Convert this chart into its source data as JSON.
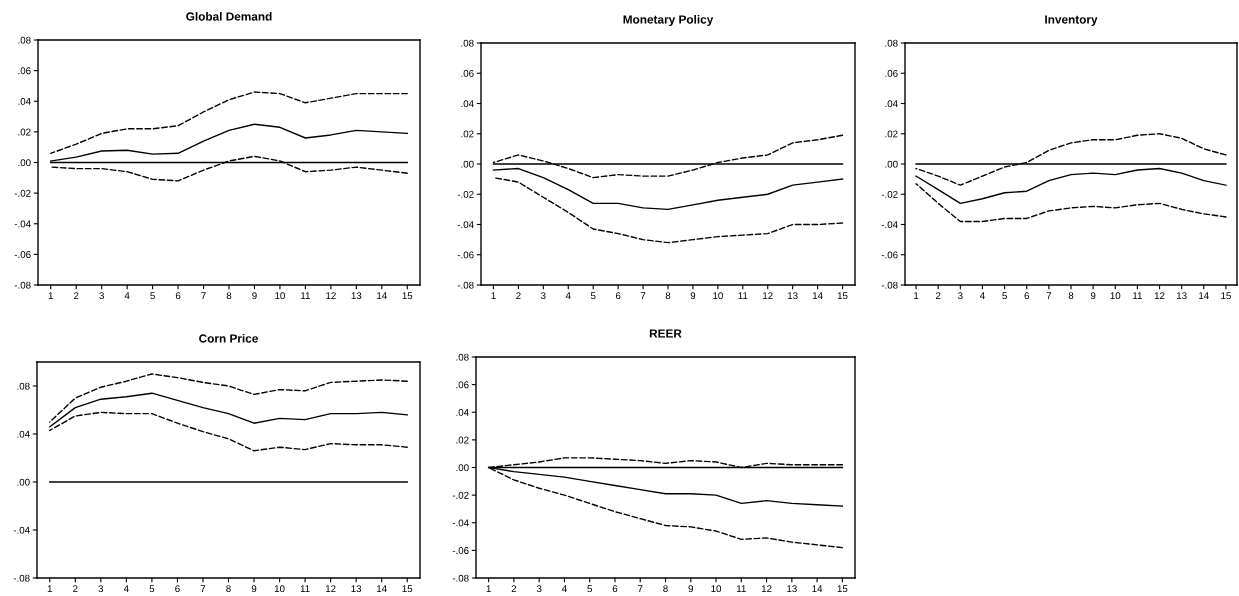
{
  "chart_data": [
    {
      "type": "line",
      "title": "Global Demand",
      "categories": [
        "1",
        "2",
        "3",
        "4",
        "5",
        "6",
        "7",
        "8",
        "9",
        "10",
        "11",
        "12",
        "13",
        "14",
        "15"
      ],
      "ylim": [
        -0.08,
        0.08
      ],
      "yticks": [
        {
          "value": -0.08,
          "label": "-.08"
        },
        {
          "value": -0.06,
          "label": "-.06"
        },
        {
          "value": -0.04,
          "label": "-.04"
        },
        {
          "value": -0.02,
          "label": "-.02"
        },
        {
          "value": 0,
          "label": ".00"
        },
        {
          "value": 0.02,
          "label": ".02"
        },
        {
          "value": 0.04,
          "label": ".04"
        },
        {
          "value": 0.06,
          "label": ".06"
        },
        {
          "value": 0.08,
          "label": ".08"
        }
      ],
      "grid": false,
      "legend": false,
      "ref_lines": [
        {
          "axis": "y",
          "value": 0,
          "color": "#000000"
        }
      ],
      "series": [
        {
          "color": "#000000",
          "line_style": "solid",
          "values": [
            0.001,
            0.0035,
            0.0075,
            0.008,
            0.0055,
            0.006,
            0.014,
            0.021,
            0.025,
            0.023,
            0.016,
            0.018,
            0.021,
            0.02,
            0.019
          ]
        },
        {
          "color": "#000000",
          "line_style": "dashed",
          "values": [
            0.006,
            0.012,
            0.019,
            0.022,
            0.022,
            0.024,
            0.033,
            0.041,
            0.046,
            0.045,
            0.039,
            0.042,
            0.045,
            0.045,
            0.045
          ]
        },
        {
          "color": "#000000",
          "line_style": "dashed",
          "values": [
            -0.003,
            -0.004,
            -0.004,
            -0.006,
            -0.011,
            -0.012,
            -0.005,
            0.001,
            0.004,
            0.001,
            -0.006,
            -0.005,
            -0.003,
            -0.005,
            -0.007
          ]
        }
      ]
    },
    {
      "type": "line",
      "title": "Monetary Policy",
      "categories": [
        "1",
        "2",
        "3",
        "4",
        "5",
        "6",
        "7",
        "8",
        "9",
        "10",
        "11",
        "12",
        "13",
        "14",
        "15"
      ],
      "ylim": [
        -0.08,
        0.08
      ],
      "yticks": [
        {
          "value": -0.08,
          "label": "-.08"
        },
        {
          "value": -0.06,
          "label": "-.06"
        },
        {
          "value": -0.04,
          "label": "-.04"
        },
        {
          "value": -0.02,
          "label": "-.02"
        },
        {
          "value": 0,
          "label": ".00"
        },
        {
          "value": 0.02,
          "label": ".02"
        },
        {
          "value": 0.04,
          "label": ".04"
        },
        {
          "value": 0.06,
          "label": ".06"
        },
        {
          "value": 0.08,
          "label": ".08"
        }
      ],
      "grid": false,
      "legend": false,
      "ref_lines": [
        {
          "axis": "y",
          "value": 0,
          "color": "#000000"
        }
      ],
      "series": [
        {
          "color": "#000000",
          "line_style": "solid",
          "values": [
            -0.004,
            -0.003,
            -0.009,
            -0.017,
            -0.026,
            -0.026,
            -0.029,
            -0.03,
            -0.027,
            -0.024,
            -0.022,
            -0.02,
            -0.014,
            -0.012,
            -0.01
          ]
        },
        {
          "color": "#000000",
          "line_style": "dashed",
          "values": [
            0.001,
            0.006,
            0.002,
            -0.003,
            -0.009,
            -0.007,
            -0.008,
            -0.008,
            -0.004,
            0.001,
            0.004,
            0.006,
            0.014,
            0.016,
            0.019
          ]
        },
        {
          "color": "#000000",
          "line_style": "dashed",
          "values": [
            -0.009,
            -0.012,
            -0.022,
            -0.032,
            -0.043,
            -0.046,
            -0.05,
            -0.052,
            -0.05,
            -0.048,
            -0.047,
            -0.046,
            -0.04,
            -0.04,
            -0.039
          ]
        }
      ]
    },
    {
      "type": "line",
      "title": "Inventory",
      "categories": [
        "1",
        "2",
        "3",
        "4",
        "5",
        "6",
        "7",
        "8",
        "9",
        "10",
        "11",
        "12",
        "13",
        "14",
        "15"
      ],
      "ylim": [
        -0.08,
        0.08
      ],
      "yticks": [
        {
          "value": -0.08,
          "label": "-.08"
        },
        {
          "value": -0.06,
          "label": "-.06"
        },
        {
          "value": -0.04,
          "label": "-.04"
        },
        {
          "value": -0.02,
          "label": "-.02"
        },
        {
          "value": 0,
          "label": ".00"
        },
        {
          "value": 0.02,
          "label": ".02"
        },
        {
          "value": 0.04,
          "label": ".04"
        },
        {
          "value": 0.06,
          "label": ".06"
        },
        {
          "value": 0.08,
          "label": ".08"
        }
      ],
      "grid": false,
      "legend": false,
      "ref_lines": [
        {
          "axis": "y",
          "value": 0,
          "color": "#000000"
        }
      ],
      "series": [
        {
          "color": "#000000",
          "line_style": "solid",
          "values": [
            -0.008,
            -0.017,
            -0.026,
            -0.023,
            -0.019,
            -0.018,
            -0.011,
            -0.007,
            -0.006,
            -0.007,
            -0.004,
            -0.003,
            -0.006,
            -0.011,
            -0.014
          ]
        },
        {
          "color": "#000000",
          "line_style": "dashed",
          "values": [
            -0.003,
            -0.008,
            -0.014,
            -0.008,
            -0.002,
            0.001,
            0.009,
            0.014,
            0.016,
            0.016,
            0.019,
            0.02,
            0.017,
            0.01,
            0.006
          ]
        },
        {
          "color": "#000000",
          "line_style": "dashed",
          "values": [
            -0.013,
            -0.026,
            -0.038,
            -0.038,
            -0.036,
            -0.036,
            -0.031,
            -0.029,
            -0.028,
            -0.029,
            -0.027,
            -0.026,
            -0.03,
            -0.033,
            -0.035
          ]
        }
      ]
    },
    {
      "type": "line",
      "title": "Corn Price",
      "categories": [
        "1",
        "2",
        "3",
        "4",
        "5",
        "6",
        "7",
        "8",
        "9",
        "10",
        "11",
        "12",
        "13",
        "14",
        "15"
      ],
      "ylim": [
        -0.08,
        0.1
      ],
      "yticks": [
        {
          "value": -0.08,
          "label": "-.08"
        },
        {
          "value": -0.04,
          "label": "-.04"
        },
        {
          "value": 0,
          "label": ".00"
        },
        {
          "value": 0.04,
          "label": ".04"
        },
        {
          "value": 0.08,
          "label": ".08"
        }
      ],
      "grid": false,
      "legend": false,
      "ref_lines": [
        {
          "axis": "y",
          "value": 0,
          "color": "#000000"
        }
      ],
      "series": [
        {
          "color": "#000000",
          "line_style": "solid",
          "values": [
            0.046,
            0.062,
            0.069,
            0.071,
            0.074,
            0.068,
            0.062,
            0.057,
            0.049,
            0.053,
            0.052,
            0.057,
            0.057,
            0.058,
            0.056
          ]
        },
        {
          "color": "#000000",
          "line_style": "dashed",
          "values": [
            0.05,
            0.07,
            0.079,
            0.084,
            0.09,
            0.087,
            0.083,
            0.08,
            0.073,
            0.077,
            0.076,
            0.083,
            0.084,
            0.085,
            0.084
          ]
        },
        {
          "color": "#000000",
          "line_style": "dashed",
          "values": [
            0.043,
            0.055,
            0.058,
            0.057,
            0.057,
            0.049,
            0.042,
            0.036,
            0.026,
            0.029,
            0.027,
            0.032,
            0.031,
            0.031,
            0.029
          ]
        }
      ]
    },
    {
      "type": "line",
      "title": "REER",
      "categories": [
        "1",
        "2",
        "3",
        "4",
        "5",
        "6",
        "7",
        "8",
        "9",
        "10",
        "11",
        "12",
        "13",
        "14",
        "15"
      ],
      "ylim": [
        -0.08,
        0.08
      ],
      "yticks": [
        {
          "value": -0.08,
          "label": "-.08"
        },
        {
          "value": -0.06,
          "label": "-.06"
        },
        {
          "value": -0.04,
          "label": "-.04"
        },
        {
          "value": -0.02,
          "label": "-.02"
        },
        {
          "value": 0,
          "label": ".00"
        },
        {
          "value": 0.02,
          "label": ".02"
        },
        {
          "value": 0.04,
          "label": ".04"
        },
        {
          "value": 0.06,
          "label": ".06"
        },
        {
          "value": 0.08,
          "label": ".08"
        }
      ],
      "grid": false,
      "legend": false,
      "ref_lines": [
        {
          "axis": "y",
          "value": 0,
          "color": "#000000"
        }
      ],
      "series": [
        {
          "color": "#000000",
          "line_style": "solid",
          "values": [
            0,
            -0.003,
            -0.005,
            -0.007,
            -0.01,
            -0.013,
            -0.016,
            -0.019,
            -0.019,
            -0.02,
            -0.026,
            -0.024,
            -0.026,
            -0.027,
            -0.028
          ]
        },
        {
          "color": "#000000",
          "line_style": "dashed",
          "values": [
            0,
            0.002,
            0.004,
            0.007,
            0.007,
            0.006,
            0.005,
            0.003,
            0.005,
            0.004,
            0,
            0.003,
            0.002,
            0.002,
            0.002
          ]
        },
        {
          "color": "#000000",
          "line_style": "dashed",
          "values": [
            0,
            -0.009,
            -0.015,
            -0.02,
            -0.026,
            -0.032,
            -0.037,
            -0.042,
            -0.043,
            -0.046,
            -0.052,
            -0.051,
            -0.054,
            -0.056,
            -0.058
          ]
        }
      ]
    }
  ]
}
